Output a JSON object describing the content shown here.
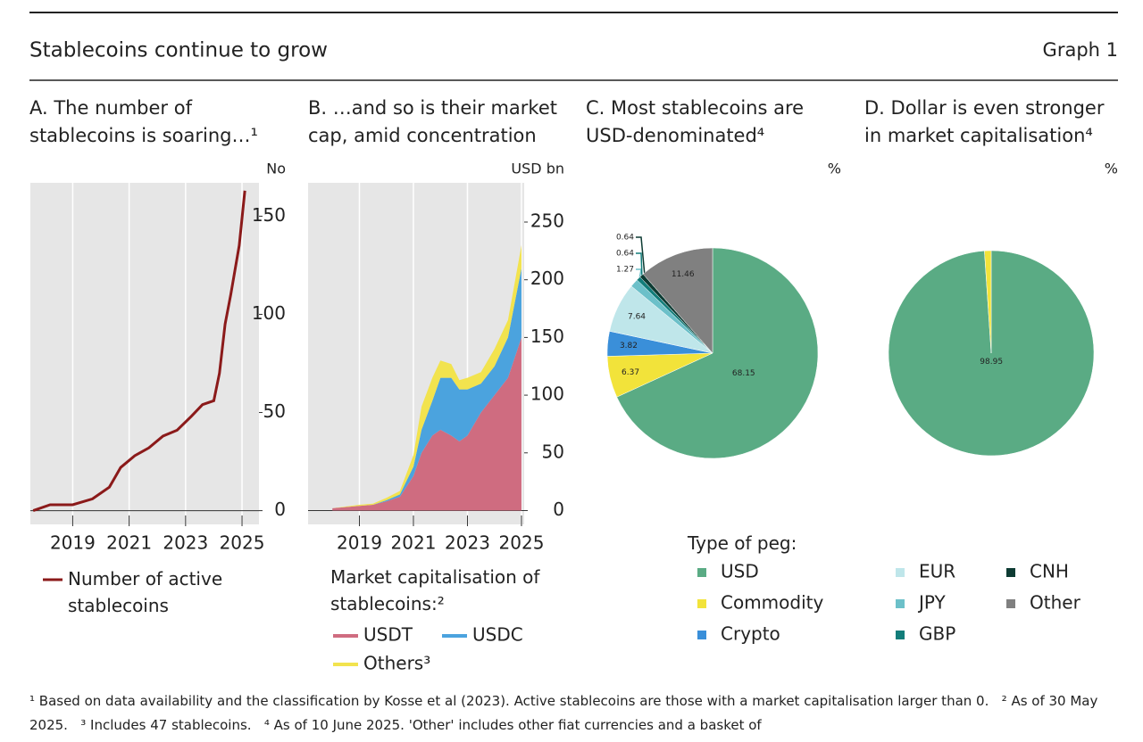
{
  "header": {
    "title": "Stablecoins continue to grow",
    "graph_label": "Graph 1"
  },
  "chart_data": [
    {
      "type": "line",
      "title": "A. The number of stablecoins is soaring…¹",
      "unit": "No",
      "x": [
        2017.6,
        2018.2,
        2019.0,
        2019.7,
        2020.3,
        2020.7,
        2021.2,
        2021.7,
        2022.2,
        2022.7,
        2023.2,
        2023.6,
        2024.0,
        2024.2,
        2024.4,
        2024.6,
        2024.9,
        2025.1
      ],
      "series": [
        {
          "name": "Number of active stablecoins",
          "color": "#8b1a1a",
          "values": [
            0,
            3,
            3,
            6,
            12,
            22,
            28,
            32,
            38,
            41,
            48,
            54,
            56,
            70,
            95,
            110,
            135,
            163
          ]
        }
      ],
      "xlim": [
        2017.5,
        2025.6
      ],
      "xticks": [
        2019,
        2021,
        2023,
        2025
      ],
      "ylim": [
        -7,
        167
      ],
      "yticks": [
        0,
        50,
        100,
        150
      ],
      "grid": true
    },
    {
      "type": "area",
      "title": "B. …and so is their market cap, amid concentration",
      "unit": "USD bn",
      "legend_title": "Market capitalisation of stablecoins:²",
      "x": [
        2018.0,
        2019.0,
        2019.5,
        2020.0,
        2020.5,
        2021.0,
        2021.3,
        2021.7,
        2022.0,
        2022.4,
        2022.7,
        2023.0,
        2023.5,
        2024.0,
        2024.5,
        2025.0
      ],
      "series": [
        {
          "name": "USDT",
          "color": "#cf6c80",
          "values": [
            2,
            4,
            5,
            8,
            12,
            30,
            50,
            65,
            70,
            65,
            60,
            65,
            85,
            100,
            115,
            150
          ]
        },
        {
          "name": "USDC",
          "color": "#4ba3de",
          "values": [
            0,
            0,
            0,
            1,
            2,
            8,
            20,
            30,
            45,
            50,
            45,
            40,
            25,
            25,
            35,
            60
          ]
        },
        {
          "name": "Others³",
          "color": "#f2e34e",
          "values": [
            0,
            1,
            1,
            2,
            3,
            10,
            20,
            20,
            15,
            12,
            8,
            10,
            10,
            15,
            15,
            20
          ]
        }
      ],
      "xlim": [
        2017.1,
        2025.1
      ],
      "xticks": [
        2019,
        2021,
        2023,
        2025
      ],
      "ylim": [
        -12,
        284
      ],
      "yticks": [
        0,
        50,
        100,
        150,
        200,
        250
      ],
      "grid": true
    },
    {
      "type": "pie",
      "title": "C. Most stablecoins are USD-denominated⁴",
      "unit": "%",
      "legend_title": "Type of peg:",
      "categories": [
        "USD",
        "Commodity",
        "Crypto",
        "EUR",
        "JPY",
        "GBP",
        "CNH",
        "Other"
      ],
      "values": [
        68.15,
        6.37,
        3.82,
        7.64,
        1.27,
        0.64,
        0.64,
        11.46
      ],
      "colors": [
        "#5aab84",
        "#f2e33a",
        "#3a8fd9",
        "#bfe6ea",
        "#6cc0c9",
        "#127d7a",
        "#0d3b33",
        "#808080"
      ]
    },
    {
      "type": "pie",
      "title": "D. Dollar is even stronger in market capitalisation⁴",
      "unit": "%",
      "categories": [
        "USD",
        "Commodity"
      ],
      "values": [
        98.95,
        1.05
      ],
      "colors": [
        "#5aab84",
        "#f2e33a"
      ]
    }
  ],
  "footnotes": "¹ Based on data availability and the classification by Kosse et al (2023). Active stablecoins are those with a market capitalisation larger than 0.   ² As of 30 May 2025.   ³ Includes 47 stablecoins.   ⁴ As of 10 June 2025. 'Other' includes other fiat currencies and a basket of"
}
